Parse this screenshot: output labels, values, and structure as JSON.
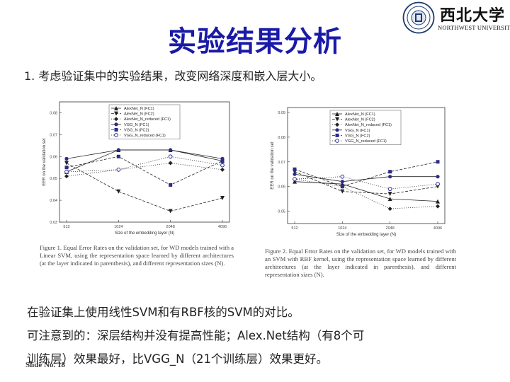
{
  "slide": {
    "title": "实验结果分析",
    "subtitle": "1. 考虑验证集中的实验结果，改变网络深度和嵌入层大小。",
    "logo": {
      "chinese_name": "西北大学",
      "english_name": "NORTHWEST UNIVERSITY",
      "seal": "university-seal"
    },
    "body_lines": [
      "在验证集上使用线性SVM和有RBF核的SVM的对比。",
      "可注意到的：深层结构并没有提高性能；Alex.Net结构（有8个可",
      "训练层）效果最好，比VGG_N（21个训练层）效果更好。"
    ],
    "slide_number": "Slide No. 18"
  },
  "colors": {
    "title": "#1a1aa8",
    "line": "#222222",
    "marker": "#2b2b8c"
  },
  "chart_data": [
    {
      "type": "line",
      "xlabel": "Size of the embedding layer (N)",
      "ylabel": "EER on the validation set",
      "x": [
        512,
        1024,
        2048,
        4096
      ],
      "x_ticks": [
        "512",
        "1024",
        "2048",
        "4096"
      ],
      "y_ticks": [
        "0.03",
        "0.04",
        "0.05",
        "0.06",
        "0.07",
        "0.08"
      ],
      "ylim": [
        0.03,
        0.085
      ],
      "legend_position": "top-left",
      "series": [
        {
          "name": "AlexNet_N (FC1)",
          "values": [
            0.053,
            0.063,
            0.063,
            0.058
          ]
        },
        {
          "name": "AlexNet_N (FC2)",
          "values": [
            0.057,
            0.044,
            0.035,
            0.041
          ]
        },
        {
          "name": "AlexNet_N_reduced (FC1)",
          "values": [
            0.051,
            0.054,
            0.057,
            0.054
          ]
        },
        {
          "name": "VGG_N (FC1)",
          "values": [
            0.059,
            0.063,
            0.063,
            0.059
          ]
        },
        {
          "name": "VGG_N (FC2)",
          "values": [
            0.055,
            0.06,
            0.047,
            0.058
          ]
        },
        {
          "name": "VGG_N_reduced (FC1)",
          "values": [
            0.053,
            0.054,
            0.06,
            0.056
          ]
        }
      ],
      "caption": "Figure 1. Equal Error Rates on the validation set, for WD models trained with a Linear SVM, using the representation space learned by different architectures (at the layer indicated in parenthesis), and different representation sizes (N)."
    },
    {
      "type": "line",
      "xlabel": "Size of the embedding layer (N)",
      "ylabel": "EER on the validation set",
      "x": [
        512,
        1024,
        2048,
        4096
      ],
      "x_ticks": [
        "512",
        "1024",
        "2048",
        "4096"
      ],
      "y_ticks": [
        "0.05",
        "0.06",
        "0.07",
        "0.08",
        "0.09"
      ],
      "ylim": [
        0.045,
        0.092
      ],
      "legend_position": "top-left",
      "series": [
        {
          "name": "AlexNet_N (FC1)",
          "values": [
            0.062,
            0.061,
            0.055,
            0.054
          ]
        },
        {
          "name": "AlexNet_N (FC2)",
          "values": [
            0.066,
            0.058,
            0.057,
            0.06
          ]
        },
        {
          "name": "AlexNet_N_reduced (FC1)",
          "values": [
            0.063,
            0.06,
            0.051,
            0.052
          ]
        },
        {
          "name": "VGG_N (FC1)",
          "values": [
            0.065,
            0.062,
            0.064,
            0.064
          ]
        },
        {
          "name": "VGG_N (FC2)",
          "values": [
            0.067,
            0.06,
            0.066,
            0.07
          ]
        },
        {
          "name": "VGG_N_reduced (FC1)",
          "values": [
            0.063,
            0.064,
            0.059,
            0.061
          ]
        }
      ],
      "caption": "Figure 2. Equal Error Rates on the validation set, for WD models trained with an SVM with RBF kernel, using the representation space learned by different architectures (at the layer indicated in parenthesis), and different representation sizes (N)."
    }
  ]
}
